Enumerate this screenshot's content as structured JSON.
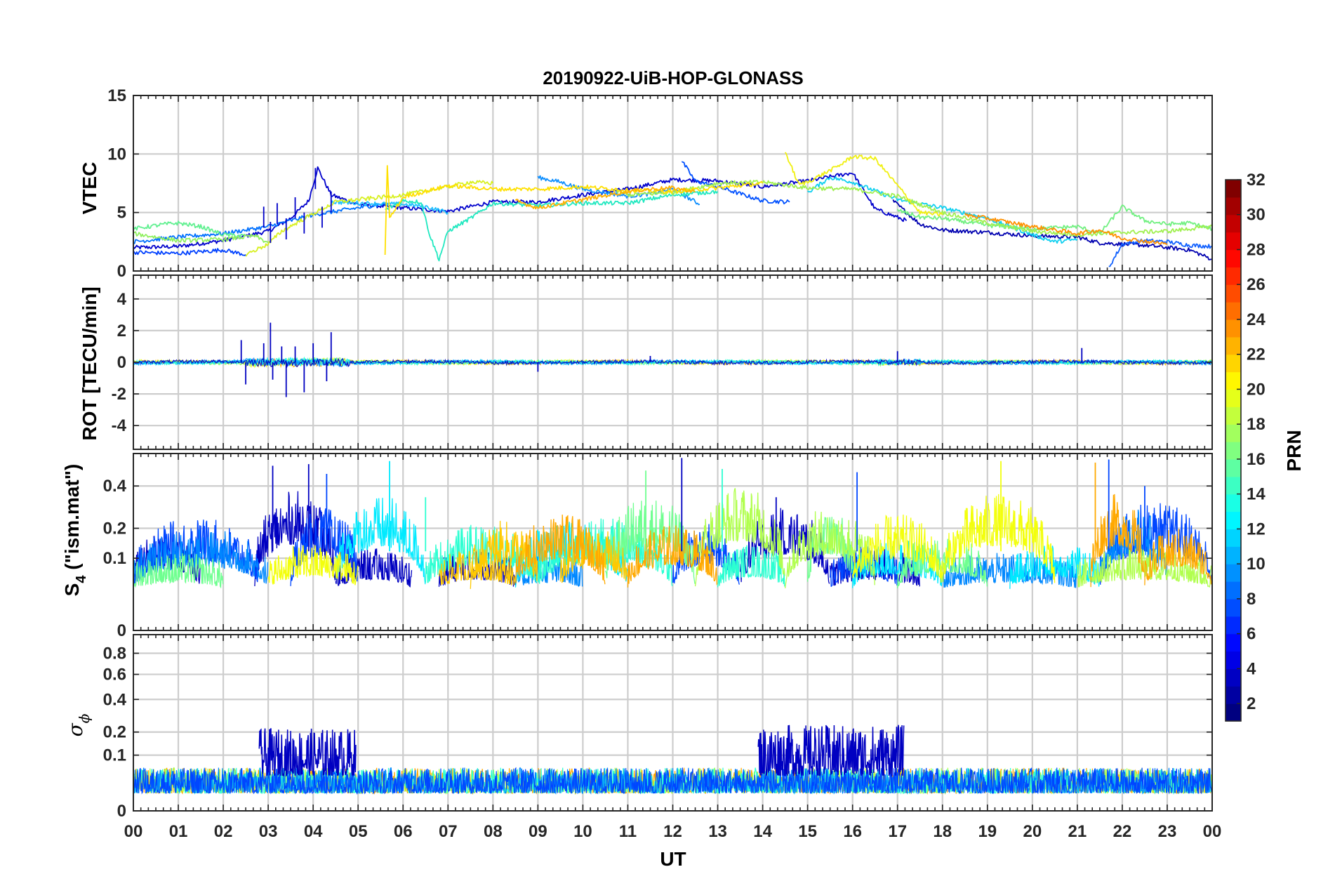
{
  "chart_data": {
    "type": "line",
    "title": "20190922-UiB-HOP-GLONASS",
    "xlabel": "UT",
    "x_range_hours": [
      0,
      24
    ],
    "x_tick_labels": [
      "00",
      "01",
      "02",
      "03",
      "04",
      "05",
      "06",
      "07",
      "08",
      "09",
      "10",
      "11",
      "12",
      "13",
      "14",
      "15",
      "16",
      "17",
      "18",
      "19",
      "20",
      "21",
      "22",
      "23",
      "00"
    ],
    "grid": true,
    "colorbar": {
      "label": "PRN",
      "range": [
        1,
        32
      ],
      "tick_labels": [
        "32",
        "30",
        "28",
        "26",
        "24",
        "22",
        "20",
        "18",
        "16",
        "14",
        "12",
        "10",
        "8",
        "6",
        "4",
        "2"
      ],
      "colormap": "jet"
    },
    "panels": [
      {
        "id": "vtec",
        "ylabel": "VTEC",
        "ylim": [
          0,
          15
        ],
        "y_tick_labels": [
          "0",
          "5",
          "10",
          "15"
        ],
        "series": [
          {
            "prn": 3,
            "color": "#0000cc",
            "points": [
              [
                0,
                2.0
              ],
              [
                1,
                2.1
              ],
              [
                2,
                2.6
              ],
              [
                3,
                3.4
              ],
              [
                3.5,
                4.5
              ],
              [
                3.9,
                6.0
              ],
              [
                4.1,
                8.8
              ],
              [
                4.4,
                6.5
              ],
              [
                5,
                5.7
              ],
              [
                6,
                5.4
              ],
              [
                7,
                5.1
              ],
              [
                8,
                5.9
              ],
              [
                9,
                5.9
              ],
              [
                10,
                6.5
              ],
              [
                11,
                7.0
              ],
              [
                12,
                7.8
              ],
              [
                13,
                7.7
              ],
              [
                14,
                7.2
              ],
              [
                15,
                7.7
              ],
              [
                16,
                8.4
              ],
              [
                16.5,
                5.3
              ],
              [
                17.2,
                4.3
              ]
            ]
          },
          {
            "prn": 3,
            "color": "#0000b0",
            "points": [
              [
                16.9,
                6.0
              ],
              [
                17.5,
                4.0
              ],
              [
                18,
                3.5
              ],
              [
                19,
                3.3
              ],
              [
                20,
                3.0
              ],
              [
                21,
                2.9
              ],
              [
                21.5,
                2.4
              ],
              [
                22.5,
                2.2
              ],
              [
                23.5,
                1.8
              ],
              [
                24,
                1.0
              ]
            ]
          },
          {
            "prn": 7,
            "color": "#0040ff",
            "points": [
              [
                0,
                1.6
              ],
              [
                1,
                1.5
              ],
              [
                2,
                1.8
              ],
              [
                2.5,
                1.4
              ]
            ]
          },
          {
            "prn": 7,
            "color": "#0050ff",
            "points": [
              [
                12.2,
                9.4
              ],
              [
                12.5,
                7.7
              ],
              [
                13,
                7.2
              ],
              [
                13.5,
                6.6
              ],
              [
                14,
                6.0
              ],
              [
                14.6,
                5.9
              ]
            ]
          },
          {
            "prn": 8,
            "color": "#1060ff",
            "points": [
              [
                21.7,
                0.3
              ],
              [
                22,
                2.3
              ],
              [
                22.5,
                2.6
              ],
              [
                23,
                2.5
              ],
              [
                23.5,
                2.2
              ],
              [
                24,
                2.1
              ]
            ]
          },
          {
            "prn": 9,
            "color": "#0070ff",
            "points": [
              [
                0,
                2.5
              ],
              [
                1,
                2.9
              ],
              [
                2,
                3.2
              ],
              [
                3,
                3.8
              ],
              [
                4,
                4.8
              ],
              [
                5,
                5.4
              ],
              [
                5.7,
                5.8
              ]
            ]
          },
          {
            "prn": 10,
            "color": "#1090ff",
            "points": [
              [
                9,
                8.0
              ],
              [
                9.5,
                7.6
              ],
              [
                10,
                7.0
              ],
              [
                11,
                6.4
              ],
              [
                11.5,
                6.6
              ],
              [
                12,
                7.0
              ],
              [
                12.6,
                5.7
              ]
            ]
          },
          {
            "prn": 12,
            "color": "#20c0ff",
            "points": [
              [
                4.4,
                5.9
              ],
              [
                5,
                5.8
              ],
              [
                6,
                5.7
              ],
              [
                6.5,
                5.5
              ],
              [
                7,
                5.0
              ]
            ]
          },
          {
            "prn": 12,
            "color": "#10d0f0",
            "points": [
              [
                15,
                6.7
              ],
              [
                15.5,
                8.0
              ],
              [
                16,
                7.6
              ],
              [
                17,
                6.1
              ],
              [
                18,
                5.4
              ],
              [
                19,
                4.5
              ],
              [
                20,
                3.1
              ],
              [
                20.5,
                2.5
              ],
              [
                21,
                2.7
              ]
            ]
          },
          {
            "prn": 14,
            "color": "#20e8c0",
            "points": [
              [
                5.6,
                5.2
              ],
              [
                6,
                6.0
              ],
              [
                6.4,
                5.9
              ],
              [
                6.6,
                3.0
              ],
              [
                6.8,
                1.0
              ],
              [
                7,
                3.4
              ],
              [
                7.5,
                4.5
              ],
              [
                8,
                5.8
              ],
              [
                9,
                5.6
              ],
              [
                10,
                5.8
              ],
              [
                11,
                5.8
              ],
              [
                12,
                6.5
              ],
              [
                13,
                6.8
              ]
            ]
          },
          {
            "prn": 16,
            "color": "#60f090",
            "points": [
              [
                0,
                3.6
              ],
              [
                0.7,
                4.0
              ],
              [
                1,
                4.1
              ],
              [
                1.5,
                3.8
              ],
              [
                2,
                3.1
              ],
              [
                2.5,
                3.0
              ]
            ]
          },
          {
            "prn": 16,
            "color": "#70f080",
            "points": [
              [
                17,
                5.2
              ],
              [
                17.5,
                4.6
              ],
              [
                18,
                4.5
              ],
              [
                19,
                3.9
              ],
              [
                20,
                3.6
              ],
              [
                21,
                3.8
              ],
              [
                21.5,
                3.2
              ],
              [
                22,
                5.5
              ],
              [
                22.5,
                4.3
              ],
              [
                23,
                4.0
              ],
              [
                23.5,
                4.1
              ],
              [
                24,
                3.6
              ]
            ]
          },
          {
            "prn": 17,
            "color": "#90f060",
            "points": [
              [
                0,
                3.2
              ],
              [
                1,
                2.6
              ],
              [
                2,
                2.7
              ],
              [
                2.7,
                3.0
              ],
              [
                3,
                2.4
              ]
            ]
          },
          {
            "prn": 17,
            "color": "#a0f050",
            "points": [
              [
                10.7,
                6.9
              ],
              [
                11,
                6.5
              ],
              [
                12,
                6.7
              ],
              [
                13,
                7.5
              ],
              [
                14,
                7.6
              ],
              [
                15,
                7.1
              ],
              [
                16,
                7.0
              ],
              [
                17,
                6.4
              ],
              [
                18,
                5.0
              ],
              [
                19,
                4.1
              ],
              [
                20,
                3.4
              ],
              [
                21,
                3.1
              ],
              [
                22,
                3.3
              ],
              [
                23,
                3.4
              ],
              [
                24,
                3.8
              ]
            ]
          },
          {
            "prn": 19,
            "color": "#d8f020",
            "points": [
              [
                2.5,
                1.4
              ],
              [
                3,
                2.3
              ],
              [
                3.3,
                3.4
              ],
              [
                4,
                4.9
              ],
              [
                4.5,
                5.9
              ],
              [
                5,
                6.1
              ],
              [
                6,
                6.5
              ],
              [
                7,
                7.2
              ],
              [
                7.5,
                7.6
              ],
              [
                8,
                7.5
              ]
            ]
          },
          {
            "prn": 20,
            "color": "#f0f010",
            "points": [
              [
                14.5,
                10.2
              ],
              [
                14.8,
                7.4
              ],
              [
                15,
                7.6
              ],
              [
                15.7,
                9.0
              ],
              [
                16,
                9.8
              ],
              [
                16.5,
                9.6
              ],
              [
                17,
                7.3
              ],
              [
                17.5,
                5.0
              ],
              [
                18,
                4.8
              ]
            ]
          },
          {
            "prn": 21,
            "color": "#ffe000",
            "points": [
              [
                5.6,
                1.5
              ],
              [
                5.65,
                9.1
              ],
              [
                5.7,
                4.5
              ],
              [
                6,
                6.3
              ],
              [
                7,
                7.3
              ],
              [
                8,
                7.0
              ],
              [
                9,
                7.0
              ],
              [
                10,
                7.2
              ],
              [
                11,
                6.9
              ],
              [
                12,
                6.8
              ],
              [
                13,
                7.1
              ],
              [
                14,
                7.5
              ]
            ]
          },
          {
            "prn": 22,
            "color": "#ffb000",
            "points": [
              [
                8.5,
                6.0
              ],
              [
                9,
                5.4
              ],
              [
                10,
                6.1
              ],
              [
                11,
                6.8
              ],
              [
                11.5,
                7.0
              ],
              [
                12,
                7.1
              ],
              [
                12.5,
                6.8
              ]
            ]
          },
          {
            "prn": 23,
            "color": "#ff9000",
            "points": [
              [
                18.5,
                4.8
              ],
              [
                19,
                4.5
              ],
              [
                20,
                3.8
              ],
              [
                21,
                3.2
              ],
              [
                21.5,
                3.5
              ],
              [
                22,
                2.8
              ],
              [
                23,
                2.3
              ]
            ]
          }
        ]
      },
      {
        "id": "rot",
        "ylabel": "ROT [TECU/min]",
        "ylim": [
          -5.5,
          5.5
        ],
        "y_tick_labels": [
          "-4",
          "-2",
          "0",
          "2",
          "4"
        ],
        "notes": "noise around 0 for all PRNs; spikes up to 2.5 and down to -2.2 between 02:30 and 04:40 UT",
        "spikes": [
          [
            2.4,
            1.4
          ],
          [
            2.5,
            -1.4
          ],
          [
            2.9,
            1.2
          ],
          [
            3.05,
            2.5
          ],
          [
            3.1,
            -1.1
          ],
          [
            3.3,
            1.0
          ],
          [
            3.4,
            -2.2
          ],
          [
            3.6,
            1.0
          ],
          [
            3.8,
            -1.9
          ],
          [
            4.0,
            1.2
          ],
          [
            4.3,
            -1.2
          ],
          [
            4.4,
            1.9
          ],
          [
            9.0,
            -0.6
          ],
          [
            11.5,
            0.4
          ],
          [
            17.0,
            0.7
          ],
          [
            21.1,
            0.9
          ]
        ]
      },
      {
        "id": "s4",
        "ylabel": "S4 (\"ism.mat\")",
        "ylabel_main": "S",
        "ylabel_sub": "4",
        "ylabel_rest": " (\"ism.mat\")",
        "ylim": [
          0,
          0.6
        ],
        "y_tick_labels": [
          "0",
          "0.1",
          "0.2",
          "0.4"
        ],
        "notes": "sqrt-scaled axis; baseline ~0.06-0.1 with bursts to ~0.55",
        "peaks": [
          [
            3.1,
            0.52
          ],
          [
            3.9,
            0.53
          ],
          [
            4.3,
            0.47
          ],
          [
            5.7,
            0.55
          ],
          [
            6.5,
            0.34
          ],
          [
            11.4,
            0.49
          ],
          [
            12.2,
            0.57
          ],
          [
            13.1,
            0.5
          ],
          [
            14.3,
            0.34
          ],
          [
            16.1,
            0.48
          ],
          [
            19.3,
            0.55
          ],
          [
            21.4,
            0.54
          ],
          [
            21.7,
            0.56
          ],
          [
            22.5,
            0.4
          ]
        ]
      },
      {
        "id": "sigma_phi",
        "ylabel": "σ",
        "ylabel_sub": "ϕ",
        "ylim": [
          0,
          1
        ],
        "y_tick_labels": [
          "0",
          "0.1",
          "0.2",
          "0.4",
          "0.6",
          "0.8"
        ],
        "notes": "sqrt-scaled axis; baseline ~0.02-0.06; PRN 3 elevated 0.1-0.2 between 03:00-05:00 and 14:00-17:00 UT",
        "bursts": [
          {
            "prn": 3,
            "from": 2.8,
            "to": 4.95,
            "max": 0.22
          },
          {
            "prn": 3,
            "from": 13.9,
            "to": 17.15,
            "max": 0.24
          }
        ]
      }
    ]
  }
}
